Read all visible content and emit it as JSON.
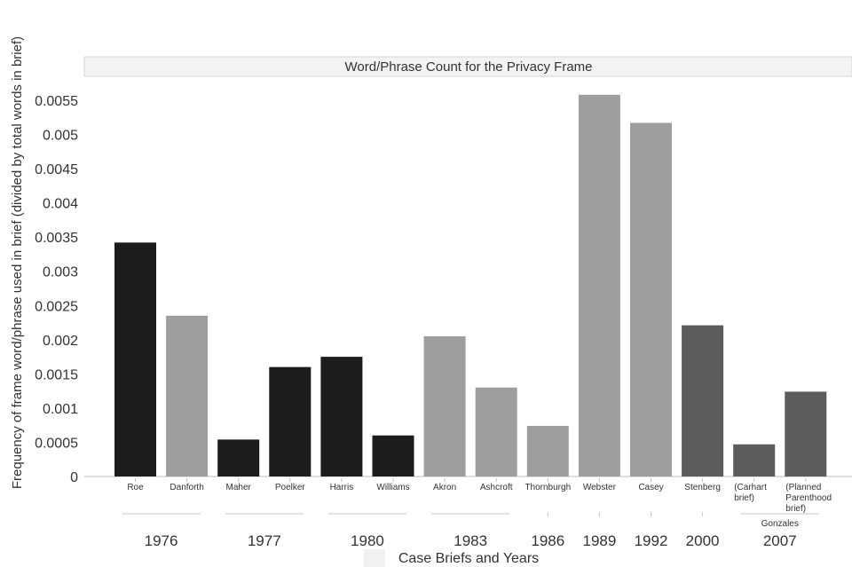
{
  "chart_data": {
    "type": "bar",
    "title": "Word/Phrase Count for the Privacy Frame",
    "ylabel": "Frequency of frame word/phrase used in brief (divided by total words in brief)",
    "xlabel": "Case Briefs and Years",
    "ylim": [
      0,
      0.00585
    ],
    "yticks": [
      "0",
      "0.0005",
      "0.001",
      "0.0015",
      "0.002",
      "0.0025",
      "0.003",
      "0.0035",
      "0.004",
      "0.0045",
      "0.005",
      "0.0055"
    ],
    "ytick_values": [
      0,
      0.0005,
      0.001,
      0.0015,
      0.002,
      0.0025,
      0.003,
      0.0035,
      0.004,
      0.0045,
      0.005,
      0.0055
    ],
    "grid": false,
    "colors": {
      "dark": "#1c1c1c",
      "light": "#9e9e9e",
      "medium": "#5c5c5c"
    },
    "bars": [
      {
        "label": [
          "Roe"
        ],
        "value": 0.00342,
        "color": "dark"
      },
      {
        "label": [
          "Danforth"
        ],
        "value": 0.00235,
        "color": "light"
      },
      {
        "label": [
          "Maher"
        ],
        "value": 0.00054,
        "color": "dark"
      },
      {
        "label": [
          "Poelker"
        ],
        "value": 0.0016,
        "color": "dark"
      },
      {
        "label": [
          "Harris"
        ],
        "value": 0.00175,
        "color": "dark"
      },
      {
        "label": [
          "Williams"
        ],
        "value": 0.0006,
        "color": "dark"
      },
      {
        "label": [
          "Akron"
        ],
        "value": 0.00205,
        "color": "light"
      },
      {
        "label": [
          "Ashcroft"
        ],
        "value": 0.0013,
        "color": "light"
      },
      {
        "label": [
          "Thornburgh"
        ],
        "value": 0.00074,
        "color": "light"
      },
      {
        "label": [
          "Webster"
        ],
        "value": 0.00558,
        "color": "light"
      },
      {
        "label": [
          "Casey"
        ],
        "value": 0.00517,
        "color": "light"
      },
      {
        "label": [
          "Stenberg"
        ],
        "value": 0.00221,
        "color": "medium"
      },
      {
        "label": [
          "(Carhart",
          "brief)"
        ],
        "value": 0.00047,
        "color": "medium"
      },
      {
        "label": [
          "(Planned",
          "Parenthood",
          "brief)"
        ],
        "value": 0.00124,
        "color": "medium"
      }
    ],
    "year_groups": [
      {
        "year": "1976",
        "from": 0,
        "to": 1
      },
      {
        "year": "1977",
        "from": 2,
        "to": 3
      },
      {
        "year": "1980",
        "from": 4,
        "to": 5
      },
      {
        "year": "1983",
        "from": 6,
        "to": 7
      },
      {
        "year": "1986",
        "from": 8,
        "to": 8
      },
      {
        "year": "1989",
        "from": 9,
        "to": 9
      },
      {
        "year": "1992",
        "from": 10,
        "to": 10
      },
      {
        "year": "2000",
        "from": 11,
        "to": 11
      },
      {
        "year": "2007",
        "from": 12,
        "to": 13,
        "sublabel": "Gonzales"
      }
    ]
  }
}
